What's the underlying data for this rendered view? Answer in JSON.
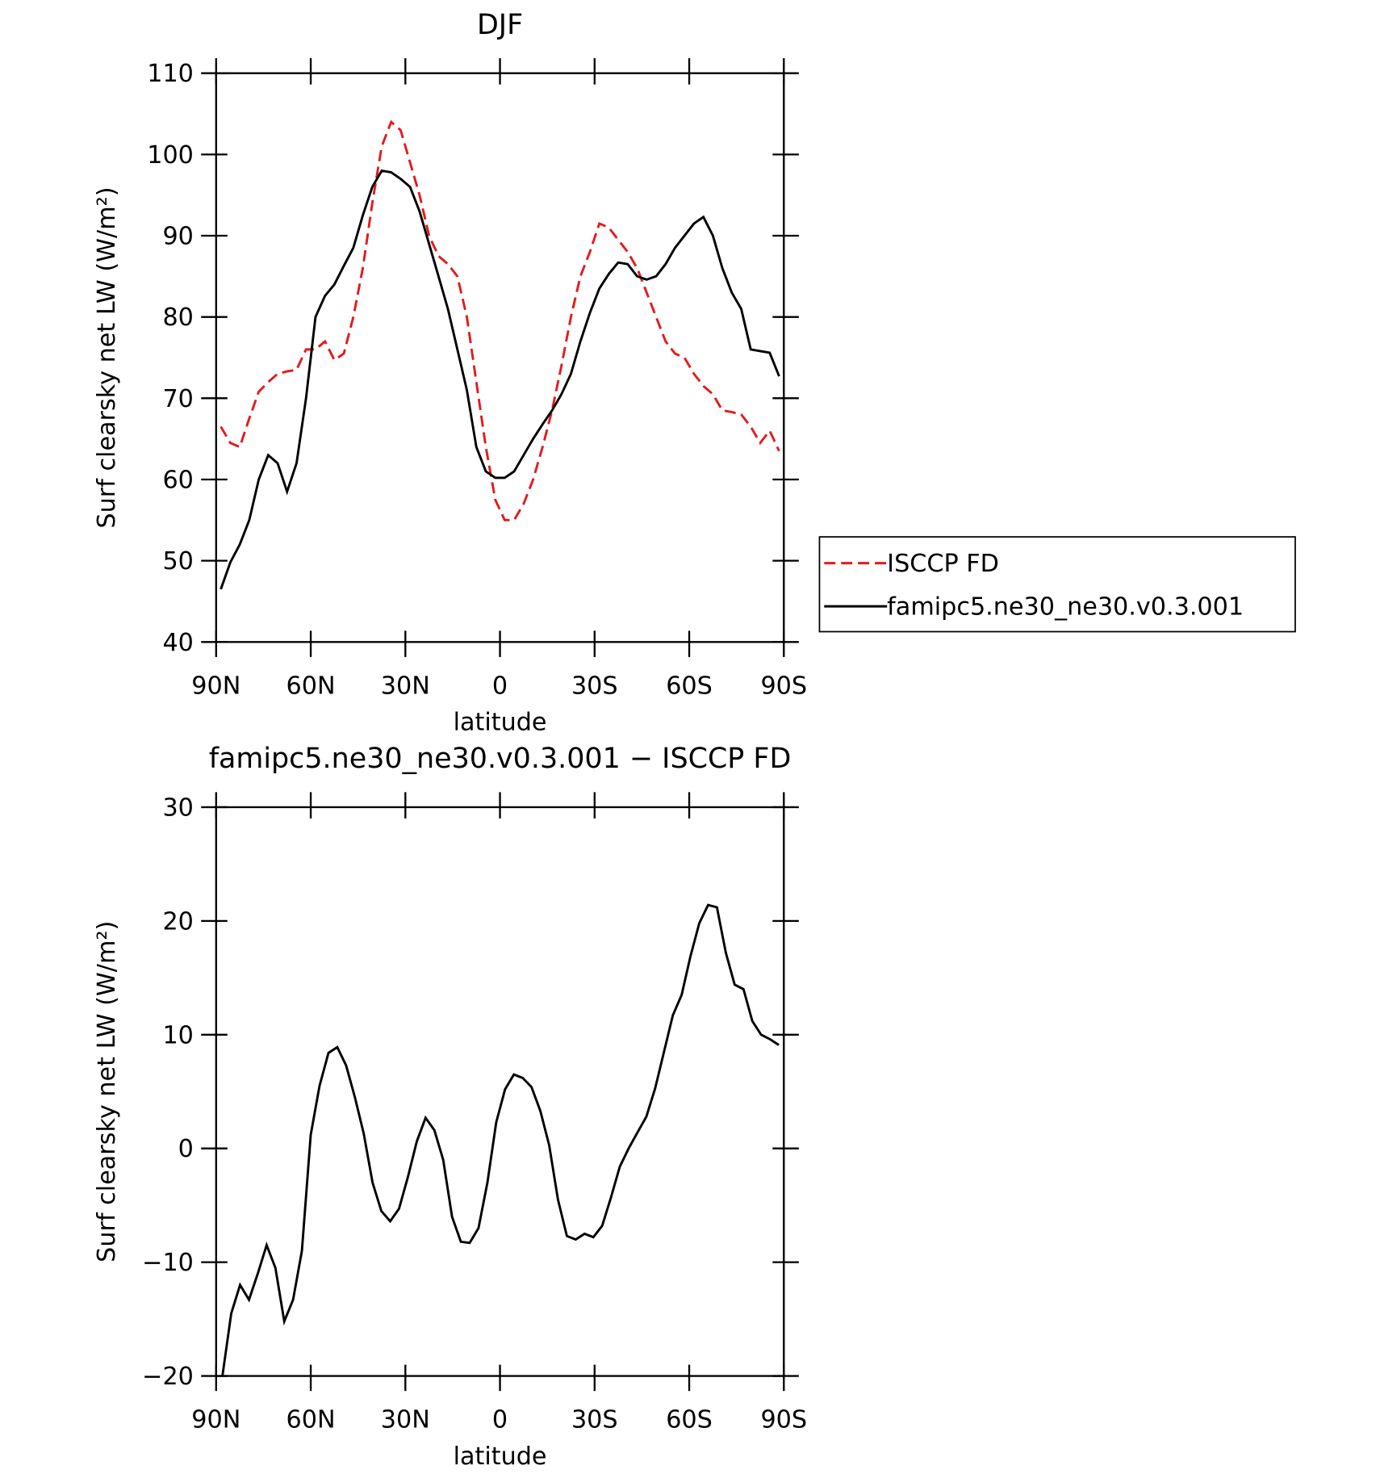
{
  "chart_data": [
    {
      "type": "line",
      "title": "DJF",
      "xlabel": "latitude",
      "ylabel": "Surf clearsky net LW (W/m²)",
      "xlim": [
        90,
        -90
      ],
      "xticks": [
        {
          "value": 90,
          "label": "90N"
        },
        {
          "value": 60,
          "label": "60N"
        },
        {
          "value": 30,
          "label": "30N"
        },
        0,
        {
          "value": -30,
          "label": "30S"
        },
        {
          "value": -60,
          "label": "60S"
        },
        {
          "value": -90,
          "label": "90S"
        }
      ],
      "ylim": [
        40,
        110
      ],
      "yticks": [
        40,
        50,
        60,
        70,
        80,
        90,
        100,
        110
      ],
      "legend": "right",
      "x": [
        88.5,
        85.5,
        82.5,
        79.5,
        76.5,
        73.5,
        70.5,
        67.5,
        64.5,
        61.5,
        58.5,
        55.5,
        52.5,
        49.5,
        46.5,
        43.5,
        40.5,
        37.5,
        34.5,
        31.5,
        28.5,
        25.5,
        22.5,
        19.5,
        16.5,
        13.5,
        10.5,
        7.5,
        4.5,
        1.5,
        -1.5,
        -4.5,
        -7.5,
        -10.5,
        -13.5,
        -16.5,
        -19.5,
        -22.5,
        -25.5,
        -28.5,
        -31.5,
        -34.5,
        -37.5,
        -40.5,
        -43.5,
        -46.5,
        -49.5,
        -52.5,
        -55.5,
        -58.5,
        -61.5,
        -64.5,
        -67.5,
        -70.5,
        -73.5,
        -76.5,
        -79.5,
        -82.5,
        -85.5,
        -88.5
      ],
      "series": [
        {
          "name": "ISCCP FD",
          "color": "#e41a1c",
          "style": "dashed",
          "values": [
            66.5,
            64.5,
            64,
            67.5,
            70.8,
            72,
            73,
            73.3,
            73.5,
            76,
            76,
            77,
            74.7,
            75.5,
            80,
            86,
            94,
            101,
            104,
            103,
            99,
            95,
            90,
            87.5,
            86.5,
            85,
            80,
            72,
            64,
            57.5,
            55,
            55,
            57,
            60,
            64,
            68.5,
            74,
            80,
            85,
            88,
            91.5,
            91,
            89.5,
            88,
            86,
            83,
            80,
            77,
            75.5,
            75,
            73,
            71.5,
            70.5,
            68.5,
            68.3,
            68,
            66.5,
            64.5,
            66,
            63.5
          ]
        },
        {
          "name": "famipc5.ne30_ne30.v0.3.001",
          "color": "#000000",
          "style": "solid",
          "values": [
            46.5,
            49.8,
            52,
            55,
            60,
            63,
            62,
            58.5,
            62,
            70,
            80,
            82.6,
            84,
            86.3,
            88.5,
            92.5,
            96,
            98,
            97.8,
            97,
            96,
            93,
            89,
            85,
            81,
            76,
            71,
            64,
            61,
            60.2,
            60.2,
            61,
            63,
            65,
            66.8,
            68.5,
            70.5,
            73,
            77,
            80.5,
            83.5,
            85.3,
            86.7,
            86.5,
            85,
            84.6,
            85,
            86.5,
            88.5,
            90,
            91.5,
            92.3,
            90,
            86,
            83,
            81,
            76,
            75.8,
            75.6,
            72.7
          ]
        }
      ]
    },
    {
      "type": "line",
      "title": "famipc5.ne30_ne30.v0.3.001 − ISCCP FD",
      "xlabel": "latitude",
      "ylabel": "Surf clearsky net LW (W/m²)",
      "xlim": [
        90,
        -90
      ],
      "xticks": [
        {
          "value": 90,
          "label": "90N"
        },
        {
          "value": 60,
          "label": "60N"
        },
        {
          "value": 30,
          "label": "30N"
        },
        0,
        {
          "value": -30,
          "label": "30S"
        },
        {
          "value": -60,
          "label": "60S"
        },
        {
          "value": -90,
          "label": "90S"
        }
      ],
      "ylim": [
        -20,
        30
      ],
      "yticks": [
        {
          "value": -20,
          "label": "−20"
        },
        {
          "value": -10,
          "label": "−10"
        },
        0,
        10,
        20,
        30
      ],
      "x": [
        88,
        85.2,
        82.4,
        79.6,
        76.8,
        74,
        71.2,
        68.4,
        65.6,
        62.8,
        60,
        57.2,
        54.4,
        51.6,
        48.8,
        46,
        43.2,
        40.4,
        37.6,
        34.8,
        32,
        29.2,
        26.4,
        23.6,
        20.8,
        18,
        15.2,
        12.4,
        9.6,
        6.8,
        4,
        1.2,
        -1.6,
        -4.4,
        -7.2,
        -10,
        -12.8,
        -15.6,
        -18.4,
        -21.2,
        -24,
        -26.8,
        -29.6,
        -32.4,
        -35.2,
        -38,
        -40.8,
        -43.6,
        -46.4,
        -49.2,
        -52,
        -54.8,
        -57.6,
        -60.4,
        -63.2,
        -66,
        -68.8,
        -71.6,
        -74.4,
        -77.2,
        -80,
        -82.8,
        -85.6,
        -88.4
      ],
      "series": [
        {
          "color": "#000000",
          "style": "solid",
          "values": [
            -20,
            -14.5,
            -12,
            -13.3,
            -11,
            -8.5,
            -10.5,
            -15.2,
            -13.3,
            -9,
            1.2,
            5.5,
            8.4,
            8.9,
            7.3,
            4.5,
            1.3,
            -3,
            -5.5,
            -6.4,
            -5.3,
            -2.5,
            0.6,
            2.7,
            1.6,
            -1,
            -6,
            -8.2,
            -8.3,
            -7,
            -3,
            2.3,
            5.2,
            6.5,
            6.2,
            5.4,
            3.3,
            0.3,
            -4.5,
            -7.7,
            -8,
            -7.5,
            -7.8,
            -6.8,
            -4.3,
            -1.6,
            0,
            1.4,
            2.8,
            5.3,
            8.5,
            11.7,
            13.5,
            16.9,
            19.8,
            21.4,
            21.2,
            17.2,
            14.4,
            14,
            11.2,
            10,
            9.6,
            9.1
          ]
        }
      ]
    }
  ]
}
